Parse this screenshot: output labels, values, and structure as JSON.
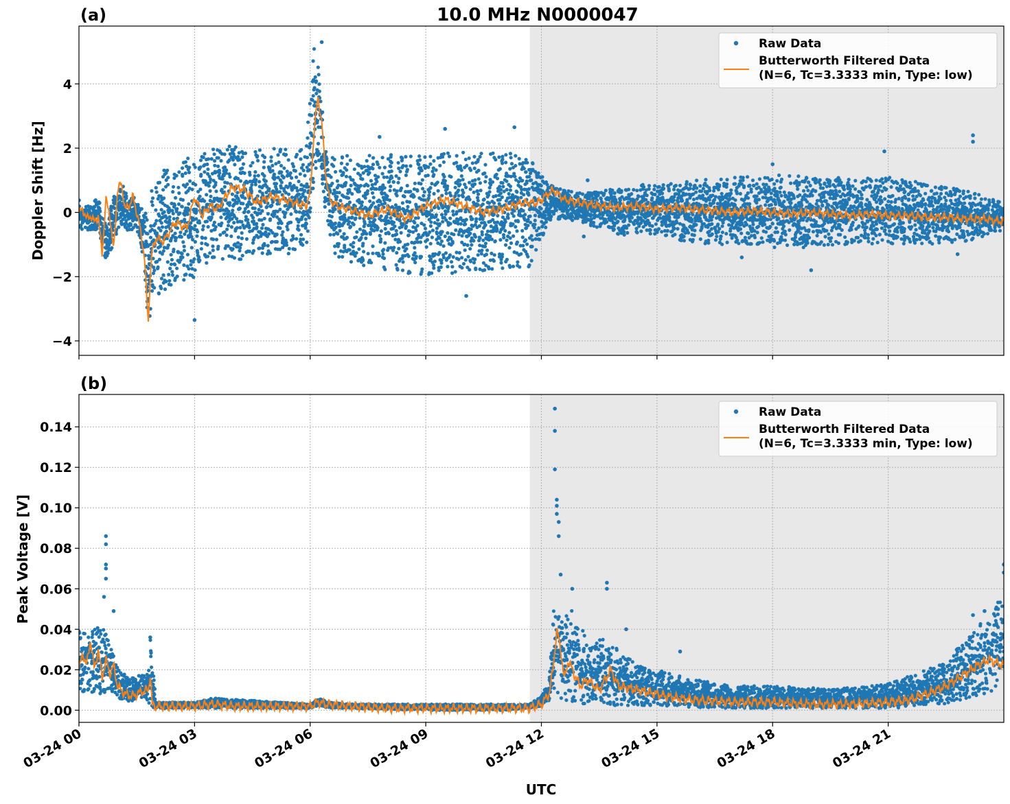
{
  "figure": {
    "title": "10.0 MHz N0000047",
    "xlabel": "UTC"
  },
  "chart_data": [
    {
      "type": "line",
      "panel_label": "(a)",
      "ylabel": "Doppler Shift [Hz]",
      "xlim": [
        0,
        24
      ],
      "ylim": [
        -4.45,
        5.8
      ],
      "yticks": [
        -4,
        -2,
        0,
        2,
        4
      ],
      "ytick_labels": [
        "−4",
        "−2",
        "0",
        "2",
        "4"
      ],
      "xticks": [
        0,
        3,
        6,
        9,
        12,
        15,
        18,
        21
      ],
      "xtick_labels": [
        "03-24 00",
        "03-24 03",
        "03-24 06",
        "03-24 09",
        "03-24 12",
        "03-24 15",
        "03-24 18",
        "03-24 21"
      ],
      "shaded_region": [
        11.7,
        24
      ],
      "grid": true,
      "legend_placement": "top-right",
      "series": [
        {
          "name": "Raw Data",
          "kind": "scatter",
          "color": "#1f77b4",
          "envelope": {
            "x": [
              0,
              0.1,
              0.3,
              0.5,
              0.7,
              0.9,
              1.1,
              1.3,
              1.5,
              1.7,
              1.8,
              1.9,
              2.0,
              2.5,
              3.0,
              3.5,
              4.0,
              4.5,
              5.0,
              5.5,
              5.9,
              6.1,
              6.25,
              6.4,
              6.6,
              7.0,
              8.0,
              9.0,
              10.0,
              11.0,
              11.7,
              12.2,
              12.6,
              13.0,
              14.0,
              15.0,
              16.0,
              17.0,
              18.0,
              19.0,
              20.0,
              21.0,
              22.0,
              23.0,
              24.0
            ],
            "lower": [
              -0.6,
              -0.5,
              -0.6,
              -0.5,
              -1.5,
              -1.0,
              -0.4,
              -0.6,
              -0.5,
              -1.6,
              -3.9,
              -2.6,
              -2.8,
              -2.3,
              -2.0,
              -1.5,
              -1.5,
              -1.4,
              -1.4,
              -1.3,
              -1.1,
              1.0,
              1.5,
              -0.2,
              -1.3,
              -1.6,
              -1.8,
              -2.0,
              -1.9,
              -1.8,
              -1.7,
              -0.3,
              -0.2,
              -0.3,
              -0.7,
              -0.7,
              -1.0,
              -1.0,
              -1.1,
              -1.1,
              -1.0,
              -1.0,
              -1.0,
              -0.9,
              -0.6
            ],
            "upper": [
              0.4,
              0.3,
              0.2,
              0.5,
              -0.4,
              0.5,
              0.95,
              0.4,
              0.6,
              0.2,
              0.2,
              1.0,
              1.2,
              1.6,
              1.8,
              2.0,
              2.1,
              2.0,
              2.0,
              2.0,
              2.2,
              5.1,
              4.8,
              2.0,
              1.7,
              1.8,
              1.8,
              1.8,
              1.9,
              1.9,
              1.7,
              0.9,
              0.7,
              0.6,
              0.8,
              0.9,
              1.0,
              1.1,
              1.2,
              1.1,
              1.1,
              1.1,
              0.9,
              0.7,
              0.3
            ]
          },
          "outliers": [
            [
              3.0,
              -3.35
            ],
            [
              6.3,
              5.3
            ],
            [
              7.8,
              2.35
            ],
            [
              9.5,
              2.6
            ],
            [
              10.05,
              -2.6
            ],
            [
              11.3,
              2.65
            ],
            [
              23.2,
              2.4
            ],
            [
              23.2,
              2.2
            ],
            [
              13.1,
              -0.75
            ],
            [
              19.0,
              -1.8
            ],
            [
              17.2,
              -1.4
            ],
            [
              22.8,
              -1.3
            ],
            [
              13.2,
              1.0
            ],
            [
              18.0,
              1.5
            ],
            [
              20.9,
              1.9
            ]
          ]
        },
        {
          "name": "Butterworth Filtered Data\n(N=6, Tc=3.3333 min, Type: low)",
          "kind": "line",
          "color": "#ff7f0e",
          "x": [
            0,
            0.1,
            0.2,
            0.3,
            0.4,
            0.5,
            0.6,
            0.7,
            0.8,
            0.9,
            1.0,
            1.1,
            1.2,
            1.3,
            1.4,
            1.5,
            1.6,
            1.7,
            1.75,
            1.8,
            1.85,
            1.9,
            2.0,
            2.2,
            2.5,
            2.8,
            3.0,
            3.2,
            3.4,
            3.6,
            3.8,
            4.0,
            4.3,
            4.6,
            5.0,
            5.3,
            5.6,
            5.9,
            6.0,
            6.1,
            6.2,
            6.3,
            6.4,
            6.5,
            6.7,
            7.0,
            7.5,
            8.0,
            8.5,
            9.0,
            9.5,
            10.0,
            10.5,
            11.0,
            11.5,
            11.9,
            12.1,
            12.3,
            12.6,
            13.0,
            13.5,
            14.0,
            14.5,
            15.0,
            15.5,
            16.0,
            16.5,
            17.0,
            17.5,
            18.0,
            18.5,
            19.0,
            19.5,
            20.0,
            20.5,
            21.0,
            21.5,
            22.0,
            22.5,
            23.0,
            23.5,
            24.0
          ],
          "y": [
            0.0,
            0.1,
            -0.2,
            -0.1,
            -0.3,
            -0.1,
            -1.3,
            0.4,
            -0.1,
            -1.2,
            0.7,
            0.9,
            0.1,
            0.2,
            0.5,
            0.0,
            -0.6,
            -1.4,
            -2.5,
            -3.4,
            -2.0,
            -1.2,
            -0.8,
            -0.9,
            -0.3,
            -0.5,
            0.5,
            -0.1,
            0.2,
            0.1,
            0.5,
            0.8,
            0.7,
            0.3,
            0.5,
            0.4,
            0.3,
            0.2,
            0.6,
            2.5,
            3.6,
            2.8,
            1.2,
            0.4,
            0.2,
            0.1,
            -0.1,
            0.1,
            -0.2,
            0.2,
            0.4,
            0.2,
            0.0,
            0.1,
            0.3,
            0.3,
            0.5,
            0.7,
            0.4,
            0.3,
            0.2,
            0.15,
            0.2,
            0.1,
            0.15,
            0.1,
            0.05,
            0.0,
            0.05,
            0.0,
            -0.05,
            0.0,
            -0.05,
            -0.1,
            -0.05,
            -0.1,
            -0.1,
            -0.15,
            -0.15,
            -0.2,
            -0.2,
            -0.3
          ]
        }
      ]
    },
    {
      "type": "line",
      "panel_label": "(b)",
      "ylabel": "Peak Voltage [V]",
      "xlim": [
        0,
        24
      ],
      "ylim": [
        -0.006,
        0.156
      ],
      "yticks": [
        0.0,
        0.02,
        0.04,
        0.06,
        0.08,
        0.1,
        0.12,
        0.14
      ],
      "ytick_labels": [
        "0.00",
        "0.02",
        "0.04",
        "0.06",
        "0.08",
        "0.10",
        "0.12",
        "0.14"
      ],
      "xticks": [
        0,
        3,
        6,
        9,
        12,
        15,
        18,
        21
      ],
      "xtick_labels": [
        "03-24 00",
        "03-24 03",
        "03-24 06",
        "03-24 09",
        "03-24 12",
        "03-24 15",
        "03-24 18",
        "03-24 21"
      ],
      "shaded_region": [
        11.7,
        24
      ],
      "grid": true,
      "legend_placement": "top-right",
      "series": [
        {
          "name": "Raw Data",
          "kind": "scatter",
          "color": "#1f77b4",
          "envelope": {
            "x": [
              0,
              0.3,
              0.6,
              0.8,
              1.0,
              1.3,
              1.6,
              1.8,
              1.85,
              2.0,
              3.0,
              3.5,
              6.0,
              6.2,
              6.5,
              7.0,
              9.0,
              11.0,
              11.7,
              12.0,
              12.2,
              12.35,
              12.5,
              12.8,
              13.2,
              13.6,
              14.0,
              14.5,
              15.0,
              16.0,
              17.0,
              18.0,
              19.0,
              20.0,
              21.0,
              22.0,
              22.5,
              23.0,
              23.5,
              24.0
            ],
            "lower": [
              0.01,
              0.008,
              0.006,
              0.009,
              0.005,
              0.004,
              0.006,
              0.005,
              0.001,
              0.001,
              0.001,
              0.001,
              0.001,
              0.002,
              0.001,
              0.001,
              0.0,
              0.0,
              0.001,
              0.002,
              0.005,
              0.01,
              0.005,
              0.004,
              0.003,
              0.003,
              0.002,
              0.002,
              0.002,
              0.001,
              0.001,
              0.001,
              0.001,
              0.001,
              0.001,
              0.002,
              0.003,
              0.005,
              0.008,
              0.01
            ],
            "upper": [
              0.04,
              0.04,
              0.045,
              0.035,
              0.022,
              0.015,
              0.018,
              0.018,
              0.036,
              0.004,
              0.004,
              0.006,
              0.003,
              0.006,
              0.004,
              0.003,
              0.003,
              0.003,
              0.003,
              0.007,
              0.015,
              0.058,
              0.045,
              0.05,
              0.035,
              0.035,
              0.03,
              0.022,
              0.02,
              0.015,
              0.012,
              0.012,
              0.011,
              0.011,
              0.013,
              0.02,
              0.025,
              0.035,
              0.045,
              0.06
            ]
          },
          "outliers": [
            [
              0.7,
              0.086
            ],
            [
              0.7,
              0.082
            ],
            [
              0.7,
              0.072
            ],
            [
              0.7,
              0.07
            ],
            [
              0.7,
              0.065
            ],
            [
              0.65,
              0.056
            ],
            [
              0.9,
              0.049
            ],
            [
              1.85,
              0.036
            ],
            [
              12.35,
              0.149
            ],
            [
              12.35,
              0.138
            ],
            [
              12.35,
              0.119
            ],
            [
              12.4,
              0.104
            ],
            [
              12.4,
              0.101
            ],
            [
              12.4,
              0.097
            ],
            [
              12.45,
              0.093
            ],
            [
              12.45,
              0.086
            ],
            [
              12.5,
              0.067
            ],
            [
              12.8,
              0.06
            ],
            [
              13.7,
              0.063
            ],
            [
              13.7,
              0.06
            ],
            [
              14.2,
              0.04
            ],
            [
              15.6,
              0.029
            ],
            [
              23.85,
              0.05
            ],
            [
              24.0,
              0.072
            ],
            [
              24.0,
              0.068
            ],
            [
              23.5,
              0.049
            ],
            [
              23.2,
              0.047
            ]
          ]
        },
        {
          "name": "Butterworth Filtered Data\n(N=6, Tc=3.3333 min, Type: low)",
          "kind": "line",
          "color": "#ff7f0e",
          "x": [
            0,
            0.1,
            0.2,
            0.3,
            0.4,
            0.5,
            0.6,
            0.7,
            0.8,
            0.9,
            1.0,
            1.2,
            1.4,
            1.6,
            1.8,
            1.85,
            1.9,
            2.5,
            3.0,
            3.5,
            4.0,
            5.0,
            6.0,
            6.2,
            6.4,
            7.0,
            8.0,
            9.0,
            10.0,
            11.0,
            11.7,
            12.0,
            12.2,
            12.3,
            12.4,
            12.5,
            12.6,
            12.7,
            12.8,
            13.0,
            13.2,
            13.5,
            13.8,
            14.0,
            14.5,
            15.0,
            15.5,
            16.0,
            17.0,
            18.0,
            19.0,
            20.0,
            21.0,
            21.5,
            22.0,
            22.5,
            23.0,
            23.3,
            23.6,
            24.0
          ],
          "y": [
            0.02,
            0.028,
            0.022,
            0.035,
            0.02,
            0.03,
            0.016,
            0.025,
            0.018,
            0.022,
            0.012,
            0.008,
            0.007,
            0.009,
            0.01,
            0.018,
            0.002,
            0.002,
            0.002,
            0.003,
            0.002,
            0.002,
            0.002,
            0.004,
            0.003,
            0.002,
            0.001,
            0.001,
            0.001,
            0.001,
            0.001,
            0.003,
            0.008,
            0.02,
            0.04,
            0.03,
            0.015,
            0.025,
            0.02,
            0.012,
            0.015,
            0.01,
            0.02,
            0.012,
            0.01,
            0.008,
            0.006,
            0.005,
            0.004,
            0.004,
            0.003,
            0.003,
            0.004,
            0.005,
            0.008,
            0.012,
            0.018,
            0.022,
            0.025,
            0.022
          ]
        }
      ]
    }
  ]
}
